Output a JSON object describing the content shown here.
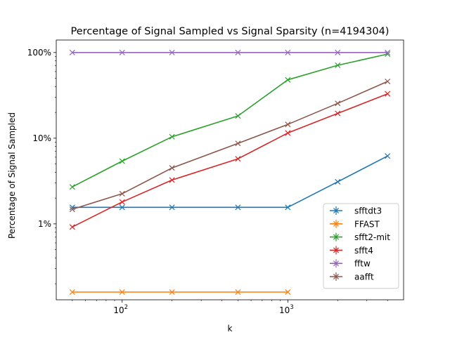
{
  "chart_data": {
    "type": "line",
    "title": "Percentage of Signal Sampled vs Signal Sparsity (n=4194304)",
    "xlabel": "k",
    "ylabel": "Percentage of Signal Sampled",
    "xscale": "log",
    "yscale": "log",
    "xlim": [
      40,
      5000
    ],
    "ylim": [
      0.13,
      140
    ],
    "x_major_ticks": [
      {
        "value": 100,
        "base": "10",
        "exp": "2"
      },
      {
        "value": 1000,
        "base": "10",
        "exp": "3"
      }
    ],
    "y_major_ticks": [
      {
        "value": 1,
        "label": "1%"
      },
      {
        "value": 10,
        "label": "10%"
      },
      {
        "value": 100,
        "label": "100%"
      }
    ],
    "legend_position": "lower-right",
    "x": [
      50,
      100,
      200,
      500,
      1000,
      2000,
      4000
    ],
    "series": [
      {
        "name": "sfftdt3",
        "color": "#1f77b4",
        "values": [
          1.56,
          1.56,
          1.56,
          1.56,
          1.56,
          3.1,
          6.2
        ]
      },
      {
        "name": "FFAST",
        "color": "#ff7f0e",
        "values": [
          0.16,
          0.16,
          0.16,
          0.16,
          0.16,
          null,
          null
        ]
      },
      {
        "name": "sfft2-mit",
        "color": "#2ca02c",
        "values": [
          2.7,
          5.4,
          10.4,
          18.2,
          48,
          71,
          96
        ]
      },
      {
        "name": "sfft4",
        "color": "#d62728",
        "values": [
          0.92,
          1.8,
          3.25,
          5.75,
          11.5,
          19.5,
          33
        ]
      },
      {
        "name": "fftw",
        "color": "#9467bd",
        "values": [
          100,
          100,
          100,
          100,
          100,
          100,
          100
        ]
      },
      {
        "name": "aafft",
        "color": "#8c564b",
        "values": [
          1.48,
          2.25,
          4.5,
          8.7,
          14.5,
          25.5,
          46
        ]
      }
    ]
  }
}
